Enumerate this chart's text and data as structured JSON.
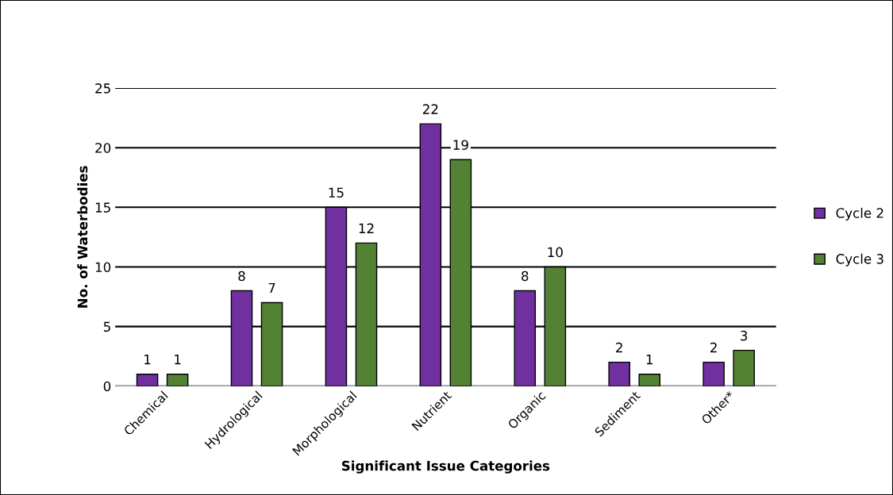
{
  "chart_data": {
    "type": "bar",
    "xlabel": "Significant Issue Categories",
    "ylabel": "No. of Waterbodies",
    "categories": [
      "Chemical",
      "Hydrological",
      "Morphological",
      "Nutrient",
      "Organic",
      "Sediment",
      "Other*"
    ],
    "series": [
      {
        "name": "Cycle 2",
        "color": "#7030a0",
        "values": [
          1,
          8,
          15,
          22,
          8,
          2,
          2
        ]
      },
      {
        "name": "Cycle 3",
        "color": "#548235",
        "values": [
          1,
          7,
          12,
          19,
          10,
          1,
          3
        ]
      }
    ],
    "ylim": [
      0,
      25
    ],
    "yticks": [
      0,
      5,
      10,
      15,
      20,
      25
    ],
    "grid": "y",
    "legend": "right",
    "data_labels": true
  }
}
